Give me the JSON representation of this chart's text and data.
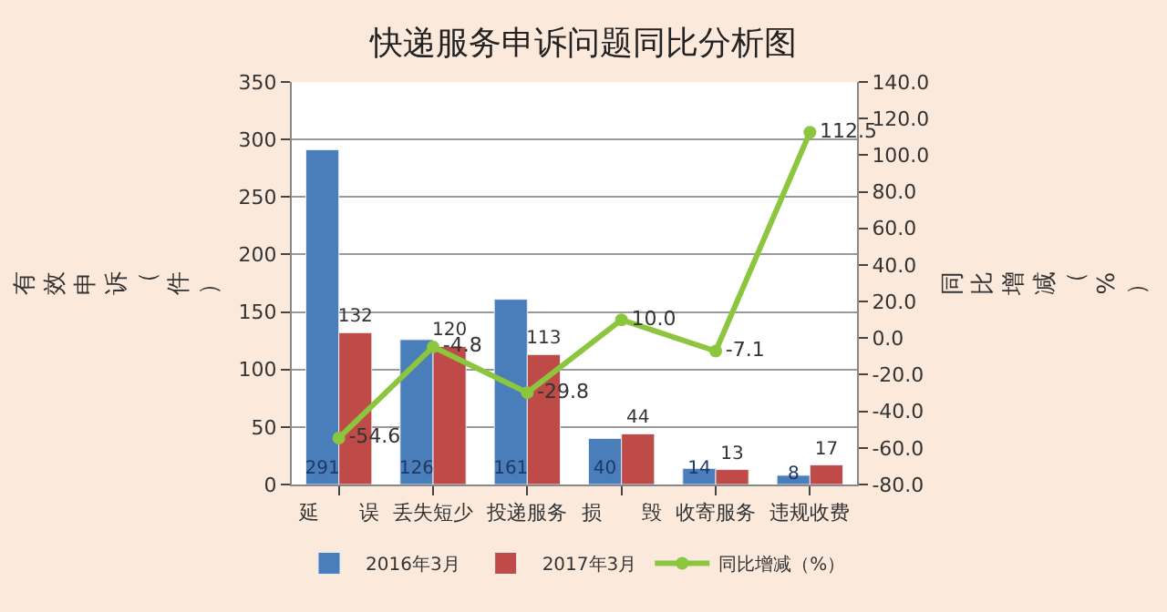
{
  "chart_data": {
    "type": "bar",
    "title": "快递服务申诉问题同比分析图",
    "ylabel": "有效申诉（件）",
    "y2label": "同比增减（%）",
    "categories": [
      "延　　误",
      "丢失短少",
      "投递服务",
      "损　　毁",
      "收寄服务",
      "违规收费"
    ],
    "series": [
      {
        "name": "2016年3月",
        "color": "#4a7ebb",
        "values": [
          291,
          126,
          161,
          40,
          14,
          8
        ],
        "value_labels": [
          "291",
          "126",
          "161",
          "40",
          "14",
          "8"
        ]
      },
      {
        "name": "2017年3月",
        "color": "#be4b48",
        "values": [
          132,
          120,
          113,
          44,
          13,
          17
        ],
        "value_labels": [
          "132",
          "120",
          "113",
          "44",
          "13",
          "17"
        ]
      },
      {
        "name": "同比增减（%）",
        "type": "line",
        "axis": "y2",
        "color": "#8cc63f",
        "marker": "circle",
        "values": [
          -54.6,
          -4.8,
          -29.8,
          10.0,
          -7.1,
          112.5
        ],
        "value_labels": [
          "-54.6",
          "-4.8",
          "-29.8",
          "10.0",
          "-7.1",
          "112.5"
        ]
      }
    ],
    "ylim": [
      0,
      350
    ],
    "yticks": [
      0,
      50,
      100,
      150,
      200,
      250,
      300,
      350
    ],
    "y2lim": [
      -80,
      140
    ],
    "y2ticks": [
      {
        "value": -80,
        "label": "-80.0"
      },
      {
        "value": -60,
        "label": "-60.0"
      },
      {
        "value": -40,
        "label": "-40.0"
      },
      {
        "value": -20,
        "label": "-20.0"
      },
      {
        "value": 0,
        "label": "0.0"
      },
      {
        "value": 20,
        "label": "20.0"
      },
      {
        "value": 40,
        "label": "40.0"
      },
      {
        "value": 60,
        "label": "60.0"
      },
      {
        "value": 80,
        "label": "80.0"
      },
      {
        "value": 100,
        "label": "100.0"
      },
      {
        "value": 120,
        "label": "120.0"
      },
      {
        "value": 140,
        "label": "140.0"
      }
    ],
    "grid": "y",
    "legend": "bottom"
  }
}
